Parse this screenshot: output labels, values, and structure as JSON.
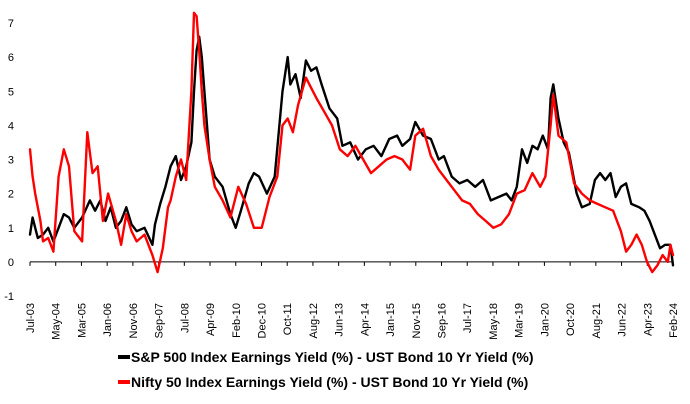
{
  "chart_data": {
    "type": "line",
    "title": "",
    "xlabel": "",
    "ylabel": "",
    "ylim": [
      -1,
      7
    ],
    "yticks": [
      -1,
      0,
      1,
      2,
      3,
      4,
      5,
      6,
      7
    ],
    "x_start": "2003-07",
    "x_end": "2024-02",
    "x_tick_labels": [
      "Jul-03",
      "May-04",
      "Mar-05",
      "Jan-06",
      "Nov-06",
      "Sep-07",
      "Jul-08",
      "Apr-09",
      "Feb-10",
      "Dec-10",
      "Oct-11",
      "Aug-12",
      "Jun-13",
      "Apr-14",
      "Jan-15",
      "Nov-15",
      "Sep-16",
      "Jul-17",
      "May-18",
      "Mar-19",
      "Jan-20",
      "Oct-20",
      "Aug-21",
      "Jun-22",
      "Apr-23",
      "Feb-24"
    ],
    "grid": false,
    "legend_position": "bottom",
    "series": [
      {
        "name": "S&P 500 Index Earnings Yield (%) - UST Bond 10 Yr Yield (%)",
        "color": "#000000",
        "points": [
          [
            "2003-07",
            0.8
          ],
          [
            "2003-08",
            1.3
          ],
          [
            "2003-09",
            1.0
          ],
          [
            "2003-10",
            0.7
          ],
          [
            "2003-12",
            0.8
          ],
          [
            "2004-02",
            1.0
          ],
          [
            "2004-04",
            0.6
          ],
          [
            "2004-06",
            1.0
          ],
          [
            "2004-08",
            1.4
          ],
          [
            "2004-10",
            1.3
          ],
          [
            "2004-12",
            1.0
          ],
          [
            "2005-03",
            1.3
          ],
          [
            "2005-06",
            1.8
          ],
          [
            "2005-08",
            1.5
          ],
          [
            "2005-10",
            1.8
          ],
          [
            "2005-12",
            1.2
          ],
          [
            "2006-02",
            1.6
          ],
          [
            "2006-04",
            1.0
          ],
          [
            "2006-06",
            1.2
          ],
          [
            "2006-08",
            1.6
          ],
          [
            "2006-10",
            1.1
          ],
          [
            "2006-12",
            0.9
          ],
          [
            "2007-03",
            1.0
          ],
          [
            "2007-06",
            0.5
          ],
          [
            "2007-07",
            1.1
          ],
          [
            "2007-09",
            1.7
          ],
          [
            "2007-11",
            2.2
          ],
          [
            "2008-01",
            2.8
          ],
          [
            "2008-03",
            3.1
          ],
          [
            "2008-05",
            2.4
          ],
          [
            "2008-07",
            2.8
          ],
          [
            "2008-09",
            3.5
          ],
          [
            "2008-10",
            5.0
          ],
          [
            "2008-11",
            6.2
          ],
          [
            "2008-12",
            6.6
          ],
          [
            "2009-01",
            6.0
          ],
          [
            "2009-02",
            5.0
          ],
          [
            "2009-04",
            3.0
          ],
          [
            "2009-06",
            2.5
          ],
          [
            "2009-09",
            2.2
          ],
          [
            "2009-12",
            1.4
          ],
          [
            "2010-02",
            1.0
          ],
          [
            "2010-04",
            1.5
          ],
          [
            "2010-07",
            2.3
          ],
          [
            "2010-09",
            2.6
          ],
          [
            "2010-11",
            2.5
          ],
          [
            "2011-02",
            2.0
          ],
          [
            "2011-05",
            2.5
          ],
          [
            "2011-08",
            5.0
          ],
          [
            "2011-10",
            6.0
          ],
          [
            "2011-11",
            5.2
          ],
          [
            "2012-01",
            5.5
          ],
          [
            "2012-03",
            4.8
          ],
          [
            "2012-05",
            5.9
          ],
          [
            "2012-07",
            5.6
          ],
          [
            "2012-09",
            5.7
          ],
          [
            "2012-11",
            5.2
          ],
          [
            "2013-02",
            4.5
          ],
          [
            "2013-05",
            4.2
          ],
          [
            "2013-07",
            3.4
          ],
          [
            "2013-10",
            3.5
          ],
          [
            "2014-01",
            3.0
          ],
          [
            "2014-04",
            3.3
          ],
          [
            "2014-07",
            3.4
          ],
          [
            "2014-10",
            3.1
          ],
          [
            "2015-01",
            3.6
          ],
          [
            "2015-04",
            3.7
          ],
          [
            "2015-06",
            3.4
          ],
          [
            "2015-09",
            3.6
          ],
          [
            "2015-11",
            4.1
          ],
          [
            "2016-02",
            3.7
          ],
          [
            "2016-05",
            3.6
          ],
          [
            "2016-08",
            3.0
          ],
          [
            "2016-10",
            3.1
          ],
          [
            "2017-01",
            2.5
          ],
          [
            "2017-04",
            2.3
          ],
          [
            "2017-07",
            2.4
          ],
          [
            "2017-10",
            2.2
          ],
          [
            "2018-01",
            2.4
          ],
          [
            "2018-04",
            1.8
          ],
          [
            "2018-07",
            1.9
          ],
          [
            "2018-10",
            2.0
          ],
          [
            "2018-12",
            1.8
          ],
          [
            "2019-02",
            2.2
          ],
          [
            "2019-04",
            3.3
          ],
          [
            "2019-06",
            2.9
          ],
          [
            "2019-08",
            3.4
          ],
          [
            "2019-10",
            3.3
          ],
          [
            "2019-12",
            3.7
          ],
          [
            "2020-02",
            3.3
          ],
          [
            "2020-03",
            4.8
          ],
          [
            "2020-04",
            5.2
          ],
          [
            "2020-06",
            4.2
          ],
          [
            "2020-08",
            3.5
          ],
          [
            "2020-10",
            3.2
          ],
          [
            "2021-01",
            2.0
          ],
          [
            "2021-03",
            1.6
          ],
          [
            "2021-06",
            1.7
          ],
          [
            "2021-08",
            2.4
          ],
          [
            "2021-10",
            2.6
          ],
          [
            "2021-12",
            2.4
          ],
          [
            "2022-02",
            2.6
          ],
          [
            "2022-04",
            1.9
          ],
          [
            "2022-06",
            2.2
          ],
          [
            "2022-08",
            2.3
          ],
          [
            "2022-10",
            1.7
          ],
          [
            "2023-01",
            1.6
          ],
          [
            "2023-03",
            1.5
          ],
          [
            "2023-05",
            1.2
          ],
          [
            "2023-07",
            0.8
          ],
          [
            "2023-09",
            0.4
          ],
          [
            "2023-11",
            0.5
          ],
          [
            "2024-01",
            0.5
          ],
          [
            "2024-02",
            -0.1
          ]
        ]
      },
      {
        "name": "Nifty 50 Index Earnings Yield (%) - UST Bond 10 Yr Yield (%)",
        "color": "#ff0000",
        "points": [
          [
            "2003-07",
            3.3
          ],
          [
            "2003-08",
            2.5
          ],
          [
            "2003-09",
            2.0
          ],
          [
            "2003-11",
            1.2
          ],
          [
            "2003-12",
            0.6
          ],
          [
            "2004-02",
            0.7
          ],
          [
            "2004-04",
            0.3
          ],
          [
            "2004-06",
            2.5
          ],
          [
            "2004-08",
            3.3
          ],
          [
            "2004-10",
            2.8
          ],
          [
            "2004-12",
            0.9
          ],
          [
            "2005-03",
            0.6
          ],
          [
            "2005-05",
            3.8
          ],
          [
            "2005-07",
            2.6
          ],
          [
            "2005-09",
            2.8
          ],
          [
            "2005-11",
            1.2
          ],
          [
            "2006-01",
            2.0
          ],
          [
            "2006-04",
            1.2
          ],
          [
            "2006-06",
            0.5
          ],
          [
            "2006-08",
            1.4
          ],
          [
            "2006-10",
            0.9
          ],
          [
            "2006-12",
            0.6
          ],
          [
            "2007-03",
            0.8
          ],
          [
            "2007-06",
            0.2
          ],
          [
            "2007-08",
            -0.3
          ],
          [
            "2007-10",
            0.4
          ],
          [
            "2007-12",
            1.6
          ],
          [
            "2008-01",
            1.8
          ],
          [
            "2008-03",
            2.5
          ],
          [
            "2008-05",
            3.0
          ],
          [
            "2008-07",
            2.4
          ],
          [
            "2008-09",
            5.0
          ],
          [
            "2008-10",
            7.3
          ],
          [
            "2008-11",
            7.2
          ],
          [
            "2008-12",
            6.2
          ],
          [
            "2009-01",
            5.0
          ],
          [
            "2009-02",
            4.0
          ],
          [
            "2009-04",
            3.0
          ],
          [
            "2009-06",
            2.2
          ],
          [
            "2009-09",
            1.8
          ],
          [
            "2009-12",
            1.3
          ],
          [
            "2010-03",
            2.2
          ],
          [
            "2010-06",
            1.7
          ],
          [
            "2010-09",
            1.0
          ],
          [
            "2010-12",
            1.0
          ],
          [
            "2011-03",
            1.9
          ],
          [
            "2011-06",
            2.5
          ],
          [
            "2011-08",
            4.0
          ],
          [
            "2011-10",
            4.2
          ],
          [
            "2011-12",
            3.8
          ],
          [
            "2012-02",
            4.6
          ],
          [
            "2012-05",
            5.4
          ],
          [
            "2012-07",
            5.1
          ],
          [
            "2012-09",
            4.8
          ],
          [
            "2012-12",
            4.4
          ],
          [
            "2013-03",
            4.0
          ],
          [
            "2013-06",
            3.3
          ],
          [
            "2013-09",
            3.1
          ],
          [
            "2013-12",
            3.4
          ],
          [
            "2014-03",
            3.0
          ],
          [
            "2014-06",
            2.6
          ],
          [
            "2014-09",
            2.8
          ],
          [
            "2014-12",
            3.0
          ],
          [
            "2015-03",
            3.1
          ],
          [
            "2015-06",
            3.0
          ],
          [
            "2015-09",
            2.7
          ],
          [
            "2015-11",
            3.7
          ],
          [
            "2016-02",
            3.9
          ],
          [
            "2016-05",
            3.1
          ],
          [
            "2016-08",
            2.7
          ],
          [
            "2016-11",
            2.4
          ],
          [
            "2017-02",
            2.1
          ],
          [
            "2017-05",
            1.8
          ],
          [
            "2017-08",
            1.7
          ],
          [
            "2017-11",
            1.4
          ],
          [
            "2018-02",
            1.2
          ],
          [
            "2018-05",
            1.0
          ],
          [
            "2018-08",
            1.1
          ],
          [
            "2018-11",
            1.4
          ],
          [
            "2019-02",
            2.0
          ],
          [
            "2019-05",
            2.1
          ],
          [
            "2019-08",
            2.6
          ],
          [
            "2019-11",
            2.2
          ],
          [
            "2020-01",
            2.5
          ],
          [
            "2020-03",
            4.0
          ],
          [
            "2020-04",
            4.9
          ],
          [
            "2020-06",
            3.7
          ],
          [
            "2020-09",
            3.5
          ],
          [
            "2020-12",
            2.3
          ],
          [
            "2021-03",
            2.0
          ],
          [
            "2021-06",
            1.8
          ],
          [
            "2021-09",
            1.7
          ],
          [
            "2021-12",
            1.6
          ],
          [
            "2022-03",
            1.5
          ],
          [
            "2022-06",
            0.9
          ],
          [
            "2022-08",
            0.3
          ],
          [
            "2022-10",
            0.5
          ],
          [
            "2022-12",
            0.8
          ],
          [
            "2023-02",
            0.5
          ],
          [
            "2023-04",
            0.0
          ],
          [
            "2023-06",
            -0.3
          ],
          [
            "2023-08",
            -0.1
          ],
          [
            "2023-10",
            0.2
          ],
          [
            "2023-12",
            0.0
          ],
          [
            "2024-01",
            0.5
          ],
          [
            "2024-02",
            0.2
          ]
        ]
      }
    ]
  }
}
